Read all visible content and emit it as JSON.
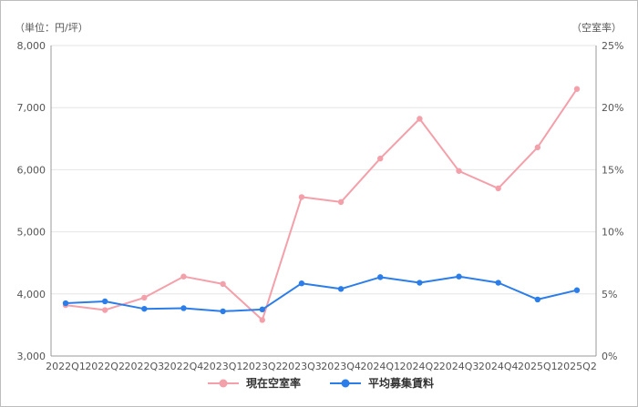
{
  "chart_data": {
    "type": "line",
    "title": "",
    "left_axis_unit": "（単位：円/坪）",
    "right_axis_unit": "（空室率）",
    "categories": [
      "2022Q1",
      "2022Q2",
      "2022Q3",
      "2022Q4",
      "2023Q1",
      "2023Q2",
      "2023Q3",
      "2023Q4",
      "2024Q1",
      "2024Q2",
      "2024Q3",
      "2024Q4",
      "2025Q1",
      "2025Q2"
    ],
    "y_left": {
      "min": 3000,
      "max": 8000,
      "ticks": [
        "3,000",
        "4,000",
        "5,000",
        "6,000",
        "7,000",
        "8,000"
      ]
    },
    "y_right": {
      "min": 0,
      "max": 25,
      "ticks": [
        "0%",
        "5%",
        "10%",
        "15%",
        "20%",
        "25%"
      ]
    },
    "grid": true,
    "legend_position": "bottom",
    "series": [
      {
        "name": "現在空室率",
        "axis": "right",
        "color": "#f4a0aa",
        "values": [
          4.1,
          3.7,
          4.7,
          6.4,
          5.8,
          2.9,
          12.8,
          12.4,
          15.9,
          19.1,
          14.9,
          13.5,
          16.8,
          21.5
        ]
      },
      {
        "name": "平均募集賃料",
        "axis": "left",
        "color": "#2b7de9",
        "values": [
          3850,
          3880,
          3760,
          3770,
          3720,
          3750,
          4170,
          4080,
          4270,
          4180,
          4280,
          4180,
          3910,
          4060
        ]
      }
    ]
  }
}
